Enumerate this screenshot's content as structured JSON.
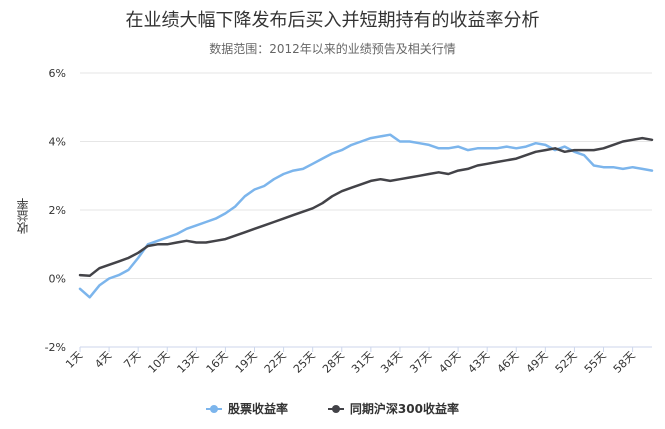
{
  "chart_data": {
    "type": "line",
    "title": "在业绩大幅下降发布后买入并短期持有的收益率分析",
    "subtitle": "数据范围：2012年以来的业绩预告及相关行情",
    "xlabel": "",
    "ylabel": "收益率",
    "ylim": [
      -2,
      6
    ],
    "yticks": [
      "-2%",
      "0%",
      "2%",
      "4%",
      "6%"
    ],
    "grid": true,
    "legend_position": "bottom",
    "x_tick_labels": [
      "1天",
      "4天",
      "7天",
      "10天",
      "13天",
      "16天",
      "19天",
      "22天",
      "25天",
      "28天",
      "31天",
      "34天",
      "37天",
      "40天",
      "43天",
      "46天",
      "49天",
      "52天",
      "55天",
      "58天"
    ],
    "x": [
      1,
      2,
      3,
      4,
      5,
      6,
      7,
      8,
      9,
      10,
      11,
      12,
      13,
      14,
      15,
      16,
      17,
      18,
      19,
      20,
      21,
      22,
      23,
      24,
      25,
      26,
      27,
      28,
      29,
      30,
      31,
      32,
      33,
      34,
      35,
      36,
      37,
      38,
      39,
      40,
      41,
      42,
      43,
      44,
      45,
      46,
      47,
      48,
      49,
      50,
      51,
      52,
      53,
      54,
      55,
      56,
      57,
      58,
      59,
      60
    ],
    "series": [
      {
        "name": "股票收益率",
        "color": "#7cb5ec",
        "values": [
          -0.3,
          -0.55,
          -0.2,
          0.0,
          0.1,
          0.25,
          0.6,
          1.0,
          1.1,
          1.2,
          1.3,
          1.45,
          1.55,
          1.65,
          1.75,
          1.9,
          2.1,
          2.4,
          2.6,
          2.7,
          2.9,
          3.05,
          3.15,
          3.2,
          3.35,
          3.5,
          3.65,
          3.75,
          3.9,
          4.0,
          4.1,
          4.15,
          4.2,
          4.0,
          4.0,
          3.95,
          3.9,
          3.8,
          3.8,
          3.85,
          3.75,
          3.8,
          3.8,
          3.8,
          3.85,
          3.8,
          3.85,
          3.95,
          3.9,
          3.75,
          3.85,
          3.7,
          3.6,
          3.3,
          3.25,
          3.25,
          3.2,
          3.25,
          3.2,
          3.15
        ]
      },
      {
        "name": "同期沪深300收益率",
        "color": "#434348",
        "values": [
          0.1,
          0.08,
          0.3,
          0.4,
          0.5,
          0.6,
          0.75,
          0.95,
          1.0,
          1.0,
          1.05,
          1.1,
          1.05,
          1.05,
          1.1,
          1.15,
          1.25,
          1.35,
          1.45,
          1.55,
          1.65,
          1.75,
          1.85,
          1.95,
          2.05,
          2.2,
          2.4,
          2.55,
          2.65,
          2.75,
          2.85,
          2.9,
          2.85,
          2.9,
          2.95,
          3.0,
          3.05,
          3.1,
          3.05,
          3.15,
          3.2,
          3.3,
          3.35,
          3.4,
          3.45,
          3.5,
          3.6,
          3.7,
          3.75,
          3.8,
          3.7,
          3.75,
          3.75,
          3.75,
          3.8,
          3.9,
          4.0,
          4.05,
          4.1,
          4.05
        ]
      }
    ]
  }
}
